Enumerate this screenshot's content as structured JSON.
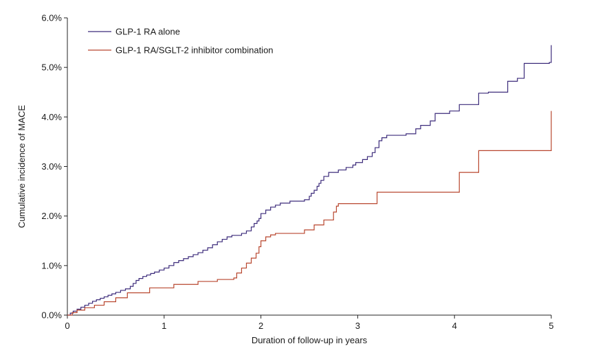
{
  "chart_data": {
    "type": "line",
    "step": true,
    "title": "",
    "xlabel": "Duration of follow-up in years",
    "ylabel": "Cumulative incidence of MACE",
    "xlim": [
      0,
      5
    ],
    "ylim": [
      0,
      6
    ],
    "x_ticks": [
      0,
      1,
      2,
      3,
      4,
      5
    ],
    "x_tick_labels": [
      "0",
      "1",
      "2",
      "3",
      "4",
      "5"
    ],
    "y_ticks": [
      0,
      1,
      2,
      3,
      4,
      5,
      6
    ],
    "y_tick_labels": [
      "0.0%",
      "1.0%",
      "2.0%",
      "3.0%",
      "4.0%",
      "5.0%",
      "6.0%"
    ],
    "grid": false,
    "legend_position": "top-left",
    "series": [
      {
        "name": "GLP-1 RA alone",
        "color": "#3b2a7a",
        "x": [
          0,
          0.03,
          0.06,
          0.1,
          0.14,
          0.18,
          0.22,
          0.26,
          0.3,
          0.34,
          0.38,
          0.42,
          0.46,
          0.5,
          0.55,
          0.6,
          0.65,
          0.68,
          0.71,
          0.74,
          0.78,
          0.82,
          0.86,
          0.9,
          0.95,
          1.0,
          1.05,
          1.1,
          1.15,
          1.2,
          1.25,
          1.3,
          1.35,
          1.4,
          1.45,
          1.5,
          1.55,
          1.6,
          1.65,
          1.7,
          1.8,
          1.85,
          1.9,
          1.93,
          1.96,
          1.98,
          2.0,
          2.05,
          2.1,
          2.15,
          2.2,
          2.3,
          2.45,
          2.5,
          2.52,
          2.55,
          2.58,
          2.6,
          2.62,
          2.65,
          2.7,
          2.8,
          2.88,
          2.95,
          2.98,
          3.05,
          3.1,
          3.15,
          3.18,
          3.22,
          3.25,
          3.3,
          3.5,
          3.6,
          3.65,
          3.75,
          3.8,
          3.95,
          4.05,
          4.25,
          4.35,
          4.55,
          4.65,
          4.72,
          4.98,
          5.0
        ],
        "values": [
          0,
          0.04,
          0.08,
          0.12,
          0.16,
          0.2,
          0.24,
          0.28,
          0.31,
          0.34,
          0.37,
          0.4,
          0.43,
          0.46,
          0.5,
          0.53,
          0.58,
          0.64,
          0.7,
          0.74,
          0.78,
          0.81,
          0.84,
          0.87,
          0.91,
          0.95,
          1.0,
          1.06,
          1.1,
          1.14,
          1.18,
          1.22,
          1.26,
          1.31,
          1.36,
          1.42,
          1.48,
          1.53,
          1.58,
          1.61,
          1.65,
          1.7,
          1.78,
          1.85,
          1.9,
          1.95,
          2.05,
          2.12,
          2.18,
          2.22,
          2.26,
          2.3,
          2.33,
          2.4,
          2.46,
          2.52,
          2.6,
          2.66,
          2.72,
          2.8,
          2.88,
          2.93,
          2.98,
          3.03,
          3.08,
          3.14,
          3.2,
          3.28,
          3.38,
          3.52,
          3.58,
          3.63,
          3.66,
          3.76,
          3.83,
          3.92,
          4.07,
          4.12,
          4.25,
          4.48,
          4.5,
          4.72,
          4.78,
          5.08,
          5.1,
          5.45
        ]
      },
      {
        "name": "GLP-1 RA/SGLT-2 inhibitor combination",
        "color": "#b8452d",
        "x": [
          0,
          0.05,
          0.1,
          0.18,
          0.28,
          0.38,
          0.5,
          0.62,
          0.85,
          1.1,
          1.35,
          1.55,
          1.72,
          1.75,
          1.8,
          1.85,
          1.9,
          1.95,
          1.98,
          2.0,
          2.05,
          2.1,
          2.15,
          2.45,
          2.55,
          2.65,
          2.75,
          2.78,
          2.8,
          3.2,
          4.05,
          4.25,
          4.98,
          5.0
        ],
        "values": [
          0,
          0.05,
          0.1,
          0.15,
          0.2,
          0.27,
          0.35,
          0.45,
          0.55,
          0.62,
          0.68,
          0.72,
          0.75,
          0.85,
          0.95,
          1.05,
          1.15,
          1.25,
          1.38,
          1.5,
          1.58,
          1.62,
          1.65,
          1.72,
          1.82,
          1.92,
          2.08,
          2.2,
          2.25,
          2.48,
          2.88,
          3.32,
          3.32,
          4.12
        ]
      }
    ]
  }
}
